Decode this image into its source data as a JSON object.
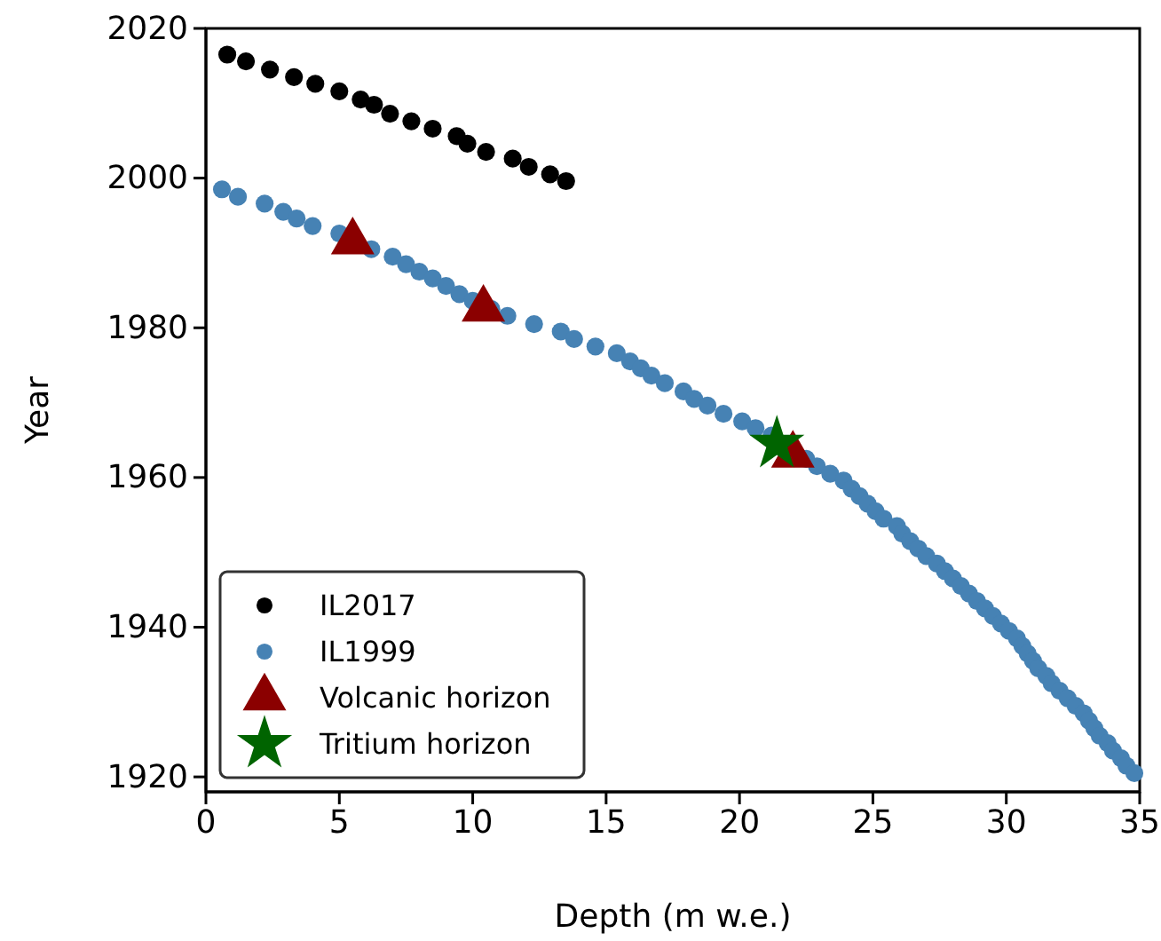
{
  "chart_data": {
    "type": "scatter",
    "xlabel": "Depth (m w.e.)",
    "ylabel": "Year",
    "xlim": [
      0,
      35
    ],
    "xticks": [
      0,
      5,
      10,
      15,
      20,
      25,
      30,
      35
    ],
    "ylim": [
      1918,
      2020
    ],
    "yticks": [
      1920,
      1940,
      1960,
      1980,
      2000,
      2020
    ],
    "grid": false,
    "legend": "bottom left",
    "series": [
      {
        "name": "IL2017",
        "color": "#000000",
        "marker": "circle",
        "x": [
          0.8,
          1.5,
          2.4,
          3.3,
          4.1,
          5.0,
          5.8,
          6.3,
          6.9,
          7.7,
          8.5,
          9.4,
          9.8,
          10.5,
          11.5,
          12.1,
          12.9,
          13.5
        ],
        "values": [
          2016.5,
          2015.6,
          2014.5,
          2013.5,
          2012.6,
          2011.6,
          2010.5,
          2009.8,
          2008.6,
          2007.6,
          2006.6,
          2005.6,
          2004.6,
          2003.5,
          2002.6,
          2001.5,
          2000.5,
          1999.6
        ]
      },
      {
        "name": "IL1999",
        "color": "#4682b4",
        "marker": "circle",
        "x": [
          0.6,
          1.2,
          2.2,
          2.9,
          3.4,
          4.0,
          5.0,
          6.2,
          7.0,
          7.5,
          8.0,
          8.5,
          9.0,
          9.5,
          10.0,
          10.7,
          11.3,
          12.3,
          13.3,
          13.8,
          14.6,
          15.4,
          15.9,
          16.3,
          16.7,
          17.2,
          17.9,
          18.3,
          18.8,
          19.4,
          20.1,
          20.6,
          21.2,
          21.6,
          22.0,
          22.5,
          22.9,
          23.4,
          23.9,
          24.2,
          24.5,
          24.8,
          25.1,
          25.4,
          25.9,
          26.1,
          26.4,
          26.7,
          27.0,
          27.4,
          27.7,
          28.0,
          28.3,
          28.6,
          28.9,
          29.2,
          29.5,
          29.8,
          30.1,
          30.4,
          30.6,
          30.8,
          31.0,
          31.2,
          31.5,
          31.7,
          32.0,
          32.3,
          32.6,
          32.9,
          33.1,
          33.3,
          33.5,
          33.8,
          34.0,
          34.3,
          34.5,
          34.8
        ],
        "values": [
          1998.5,
          1997.5,
          1996.6,
          1995.5,
          1994.6,
          1993.6,
          1992.6,
          1990.5,
          1989.5,
          1988.5,
          1987.5,
          1986.6,
          1985.6,
          1984.5,
          1983.6,
          1982.5,
          1981.6,
          1980.5,
          1979.5,
          1978.5,
          1977.5,
          1976.6,
          1975.5,
          1974.6,
          1973.6,
          1972.6,
          1971.5,
          1970.5,
          1969.6,
          1968.5,
          1967.5,
          1966.6,
          1965.6,
          null,
          null,
          1962.5,
          1961.5,
          1960.5,
          1959.6,
          1958.5,
          1957.5,
          1956.5,
          1955.5,
          1954.5,
          1953.5,
          1952.5,
          1951.5,
          1950.5,
          1949.5,
          1948.5,
          1947.5,
          1946.5,
          1945.5,
          1944.5,
          1943.5,
          1942.5,
          1941.5,
          1940.5,
          1939.5,
          1938.5,
          1937.5,
          1936.5,
          1935.5,
          1934.5,
          1933.5,
          1932.5,
          1931.5,
          1930.5,
          1929.5,
          1928.5,
          1927.5,
          1926.5,
          1925.5,
          1924.5,
          1923.5,
          1922.5,
          1921.5,
          1920.5
        ]
      },
      {
        "name": "Volcanic horizon",
        "color": "#8b0000",
        "marker": "triangle",
        "x": [
          5.5,
          10.4,
          22.0
        ],
        "values": [
          1991.5,
          1982.5,
          1963.0
        ]
      },
      {
        "name": "Tritium horizon",
        "color": "#006400",
        "marker": "star",
        "x": [
          21.4
        ],
        "values": [
          1964.5
        ]
      }
    ]
  }
}
